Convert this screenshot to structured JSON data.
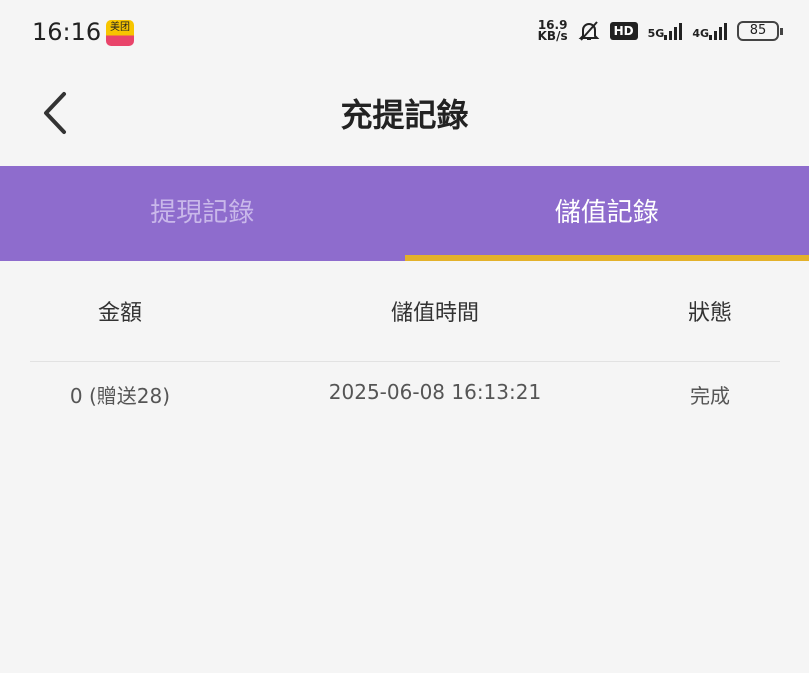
{
  "status_bar": {
    "time": "16:16",
    "app_icon_text": "美团",
    "speed_top": "16.9",
    "speed_bottom": "KB/s",
    "hd": "HD",
    "net1": "5G",
    "net2": "4G",
    "battery": "85"
  },
  "header": {
    "title": "充提記錄",
    "back_icon": "chevron-left-icon"
  },
  "tabs": [
    {
      "label": "提現記錄",
      "active": false
    },
    {
      "label": "儲值記錄",
      "active": true
    }
  ],
  "colors": {
    "tab_bg": "#8e6ccd",
    "indicator": "#e3b12a"
  },
  "table": {
    "columns": [
      "金額",
      "儲值時間",
      "狀態"
    ],
    "rows": [
      [
        "0 (贈送28)",
        "2025-06-08 16:13:21",
        "完成"
      ]
    ]
  }
}
